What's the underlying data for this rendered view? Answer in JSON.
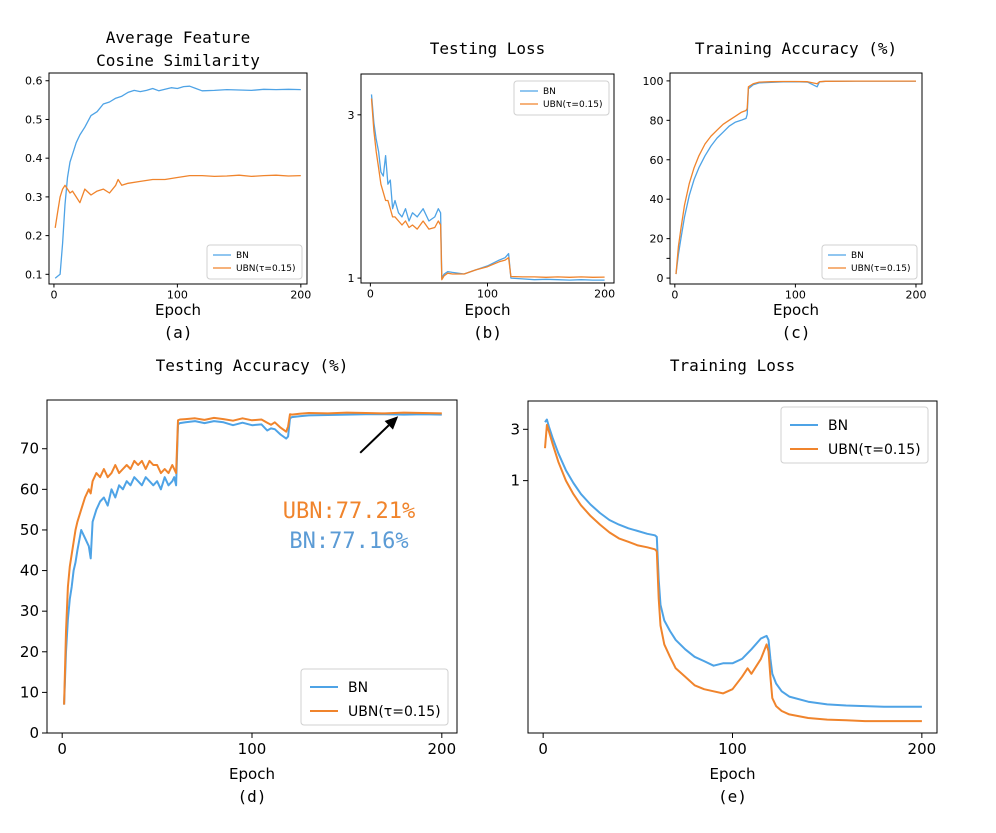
{
  "figure": {
    "colors": {
      "bn": "#4ea3e6",
      "ubn": "#f0842c"
    },
    "annotation": {
      "ubn_text": "UBN:77.21%",
      "bn_text": "BN:77.16%"
    }
  },
  "chart_data": [
    {
      "id": "a",
      "type": "line",
      "title_lines": [
        "Average Feature",
        "Cosine Similarity"
      ],
      "xlabel": "Epoch",
      "caption": "(a)",
      "xlim": [
        -4,
        205
      ],
      "ylim": [
        0.075,
        0.62
      ],
      "xticks": [
        0,
        100,
        200
      ],
      "yticks": [
        0.1,
        0.2,
        0.3,
        0.4,
        0.5,
        0.6
      ],
      "ytick_labels": [
        "0.1",
        "0.2",
        "0.3",
        "0.4",
        "0.5",
        "0.6"
      ],
      "legend": {
        "position": "lower-right",
        "entries": [
          "BN",
          "UBN(τ=0.15)"
        ]
      },
      "series": [
        {
          "name": "BN",
          "color": "#4ea3e6",
          "x": [
            1,
            3,
            5,
            7,
            9,
            11,
            13,
            15,
            18,
            21,
            25,
            30,
            35,
            40,
            45,
            50,
            55,
            60,
            65,
            70,
            75,
            80,
            85,
            90,
            95,
            100,
            105,
            110,
            115,
            120,
            130,
            140,
            150,
            160,
            170,
            180,
            190,
            200
          ],
          "y": [
            0.09,
            0.095,
            0.1,
            0.18,
            0.28,
            0.35,
            0.39,
            0.41,
            0.44,
            0.46,
            0.48,
            0.51,
            0.52,
            0.54,
            0.545,
            0.555,
            0.56,
            0.57,
            0.575,
            0.572,
            0.575,
            0.58,
            0.574,
            0.578,
            0.582,
            0.58,
            0.585,
            0.586,
            0.58,
            0.574,
            0.575,
            0.577,
            0.576,
            0.575,
            0.578,
            0.577,
            0.578,
            0.577
          ]
        },
        {
          "name": "UBN(τ=0.15)",
          "color": "#f0842c",
          "x": [
            1,
            3,
            5,
            7,
            9,
            11,
            13,
            15,
            18,
            21,
            25,
            30,
            35,
            40,
            45,
            50,
            52,
            55,
            60,
            70,
            80,
            90,
            100,
            110,
            120,
            130,
            140,
            150,
            160,
            170,
            180,
            190,
            200
          ],
          "y": [
            0.22,
            0.26,
            0.3,
            0.32,
            0.33,
            0.32,
            0.31,
            0.315,
            0.3,
            0.285,
            0.32,
            0.305,
            0.315,
            0.32,
            0.31,
            0.33,
            0.345,
            0.33,
            0.335,
            0.34,
            0.345,
            0.345,
            0.35,
            0.355,
            0.355,
            0.353,
            0.354,
            0.356,
            0.353,
            0.355,
            0.356,
            0.354,
            0.355
          ]
        }
      ]
    },
    {
      "id": "b",
      "type": "line",
      "title_lines": [
        "Testing Loss"
      ],
      "xlabel": "Epoch",
      "caption": "(b)",
      "xlim": [
        -8,
        208
      ],
      "ylim": [
        0.94,
        3.5
      ],
      "xticks": [
        0,
        100,
        200
      ],
      "yticks": [
        1,
        3
      ],
      "ytick_labels": [
        "1",
        "3"
      ],
      "legend": {
        "position": "upper-right",
        "entries": [
          "BN",
          "UBN(τ=0.15)"
        ]
      },
      "series": [
        {
          "name": "BN",
          "color": "#4ea3e6",
          "x": [
            1,
            3,
            5,
            7,
            9,
            11,
            13,
            15,
            17,
            19,
            21,
            24,
            27,
            30,
            33,
            36,
            40,
            45,
            50,
            55,
            58,
            60,
            61,
            63,
            66,
            70,
            80,
            90,
            100,
            110,
            115,
            118,
            120,
            130,
            140,
            150,
            160,
            170,
            180,
            190,
            200
          ],
          "y": [
            3.25,
            2.9,
            2.7,
            2.55,
            2.3,
            2.25,
            2.5,
            2.15,
            2.2,
            1.85,
            1.95,
            1.8,
            1.75,
            1.85,
            1.7,
            1.8,
            1.75,
            1.85,
            1.7,
            1.75,
            1.85,
            1.8,
            1.0,
            1.05,
            1.08,
            1.07,
            1.05,
            1.1,
            1.15,
            1.22,
            1.25,
            1.3,
            1.0,
            0.99,
            0.98,
            0.985,
            0.98,
            0.975,
            0.98,
            0.975,
            0.975
          ]
        },
        {
          "name": "UBN(τ=0.15)",
          "color": "#f0842c",
          "x": [
            1,
            3,
            5,
            7,
            9,
            11,
            13,
            15,
            17,
            19,
            21,
            24,
            27,
            30,
            33,
            36,
            40,
            45,
            50,
            55,
            58,
            60,
            61,
            63,
            66,
            70,
            80,
            90,
            100,
            110,
            115,
            118,
            120,
            130,
            140,
            150,
            160,
            170,
            180,
            190,
            200
          ],
          "y": [
            3.2,
            2.8,
            2.55,
            2.35,
            2.15,
            2.05,
            1.95,
            1.95,
            1.85,
            1.75,
            1.75,
            1.7,
            1.65,
            1.7,
            1.62,
            1.65,
            1.6,
            1.7,
            1.6,
            1.62,
            1.7,
            1.65,
            0.98,
            1.03,
            1.06,
            1.05,
            1.05,
            1.1,
            1.14,
            1.2,
            1.22,
            1.25,
            1.02,
            1.015,
            1.015,
            1.01,
            1.015,
            1.01,
            1.015,
            1.01,
            1.012
          ]
        }
      ]
    },
    {
      "id": "c",
      "type": "line",
      "title_lines": [
        "Training Accuracy (%)"
      ],
      "xlabel": "Epoch",
      "caption": "(c)",
      "xlim": [
        -4,
        205
      ],
      "ylim": [
        -3,
        104
      ],
      "xticks": [
        0,
        100,
        200
      ],
      "yticks": [
        0,
        10,
        20,
        40,
        60,
        80,
        100
      ],
      "ytick_labels": [
        "0",
        "",
        "20",
        "40",
        "60",
        "80",
        "100"
      ],
      "legend": {
        "position": "lower-right",
        "entries": [
          "BN",
          "UBN(τ=0.15)"
        ]
      },
      "series": [
        {
          "name": "BN",
          "color": "#4ea3e6",
          "x": [
            1,
            3,
            5,
            8,
            12,
            16,
            20,
            25,
            30,
            35,
            40,
            45,
            50,
            55,
            59,
            60,
            61,
            65,
            70,
            80,
            90,
            100,
            110,
            118,
            120,
            125,
            150,
            175,
            200
          ],
          "y": [
            2,
            12,
            20,
            31,
            42,
            50,
            56,
            62,
            67,
            71,
            74,
            77,
            79,
            80,
            81,
            83,
            96,
            98,
            99,
            99.3,
            99.5,
            99.6,
            99.4,
            97,
            99.5,
            99.8,
            99.9,
            99.9,
            99.9
          ]
        },
        {
          "name": "UBN(τ=0.15)",
          "color": "#f0842c",
          "x": [
            1,
            3,
            5,
            8,
            12,
            16,
            20,
            25,
            30,
            35,
            40,
            45,
            50,
            55,
            59,
            60,
            61,
            65,
            70,
            80,
            90,
            100,
            110,
            118,
            120,
            125,
            150,
            175,
            200
          ],
          "y": [
            2,
            16,
            25,
            37,
            48,
            56,
            62,
            68,
            72,
            75,
            78,
            80,
            82,
            84,
            85,
            86,
            97,
            98.5,
            99.4,
            99.6,
            99.7,
            99.7,
            99.6,
            98.5,
            99.6,
            99.8,
            99.9,
            99.9,
            99.9
          ]
        }
      ]
    },
    {
      "id": "d",
      "type": "line",
      "title_lines": [
        "Testing Accuracy (%)"
      ],
      "xlabel": "Epoch",
      "caption": "(d)",
      "xlim": [
        -8,
        208
      ],
      "ylim": [
        0,
        82
      ],
      "xticks": [
        0,
        100,
        200
      ],
      "yticks": [
        0,
        10,
        20,
        30,
        40,
        50,
        60,
        70
      ],
      "ytick_labels": [
        "0",
        "10",
        "20",
        "30",
        "40",
        "50",
        "60",
        "70"
      ],
      "legend": {
        "position": "lower-right",
        "entries": [
          "BN",
          "UBN(τ=0.15)"
        ]
      },
      "annotation": {
        "arrow_from": [
          157,
          69
        ],
        "arrow_to": [
          177,
          78
        ]
      },
      "series": [
        {
          "name": "BN",
          "color": "#4ea3e6",
          "x": [
            1,
            2,
            3,
            4,
            5,
            6,
            7,
            8,
            10,
            12,
            14,
            15,
            16,
            18,
            20,
            22,
            24,
            26,
            28,
            30,
            32,
            34,
            36,
            38,
            40,
            42,
            44,
            46,
            48,
            50,
            52,
            54,
            56,
            58,
            59,
            60,
            61,
            62,
            65,
            70,
            75,
            80,
            85,
            90,
            95,
            100,
            105,
            108,
            110,
            112,
            115,
            118,
            119,
            120,
            121,
            125,
            130,
            140,
            150,
            160,
            170,
            180,
            190,
            200
          ],
          "y": [
            7,
            20,
            28,
            33,
            36,
            40,
            42,
            45,
            50,
            48,
            46,
            43,
            52,
            55,
            57,
            58,
            56,
            60,
            58,
            61,
            60,
            62,
            61,
            63,
            62,
            61,
            63,
            62,
            61,
            62,
            60,
            63,
            61,
            62,
            63,
            61,
            76,
            76.3,
            76.5,
            76.8,
            76.3,
            76.8,
            76.5,
            75.8,
            76.4,
            75.8,
            76,
            74.5,
            75,
            74.8,
            73.5,
            72.5,
            73,
            77.5,
            77.8,
            78,
            78.2,
            78.3,
            78.4,
            78.5,
            78.5,
            78.4,
            78.5,
            78.4
          ]
        },
        {
          "name": "UBN(τ=0.15)",
          "color": "#f0842c",
          "x": [
            1,
            2,
            3,
            4,
            5,
            6,
            7,
            8,
            10,
            12,
            14,
            15,
            16,
            18,
            20,
            22,
            24,
            26,
            28,
            30,
            32,
            34,
            36,
            38,
            40,
            42,
            44,
            46,
            48,
            50,
            52,
            54,
            56,
            58,
            59,
            60,
            61,
            62,
            65,
            70,
            75,
            80,
            85,
            90,
            95,
            100,
            105,
            108,
            110,
            112,
            115,
            118,
            119,
            120,
            121,
            125,
            130,
            140,
            150,
            160,
            170,
            180,
            190,
            200
          ],
          "y": [
            7,
            25,
            36,
            41,
            44,
            47,
            50,
            52,
            55,
            58,
            60,
            59,
            62,
            64,
            63,
            65,
            63,
            64,
            66,
            64,
            65,
            66,
            65,
            67,
            66,
            67,
            65,
            67,
            66,
            66,
            64,
            65,
            64,
            66,
            65,
            64,
            77,
            77.2,
            77.3,
            77.5,
            77.1,
            77.6,
            77.3,
            76.9,
            77.5,
            77,
            77.2,
            76.4,
            75.9,
            76.5,
            75.2,
            74.2,
            75.5,
            78.5,
            78.4,
            78.6,
            78.8,
            78.7,
            78.9,
            78.8,
            78.7,
            78.9,
            78.8,
            78.7
          ]
        }
      ]
    },
    {
      "id": "e",
      "type": "line",
      "title_lines": [
        "Training Loss"
      ],
      "xlabel": "Epoch",
      "caption": "(e)",
      "xlim": [
        -8,
        208
      ],
      "ylim": [
        0.0045,
        5.5
      ],
      "yscale": "log",
      "xticks": [
        0,
        100,
        200
      ],
      "yticks": [
        1,
        3
      ],
      "ytick_labels": [
        "1",
        "3"
      ],
      "legend": {
        "position": "upper-right",
        "entries": [
          "BN",
          "UBN(τ=0.15)"
        ]
      },
      "series": [
        {
          "name": "BN",
          "color": "#4ea3e6",
          "x": [
            1,
            2,
            3,
            5,
            8,
            12,
            16,
            20,
            25,
            30,
            35,
            40,
            45,
            50,
            55,
            59,
            60,
            61,
            62,
            64,
            67,
            70,
            75,
            80,
            85,
            90,
            95,
            100,
            105,
            110,
            115,
            118,
            119,
            120,
            121,
            123,
            126,
            130,
            140,
            150,
            160,
            170,
            180,
            190,
            200
          ],
          "y": [
            3.5,
            3.7,
            3.2,
            2.5,
            1.8,
            1.25,
            0.95,
            0.75,
            0.6,
            0.5,
            0.43,
            0.39,
            0.36,
            0.34,
            0.32,
            0.31,
            0.3,
            0.12,
            0.07,
            0.05,
            0.04,
            0.033,
            0.027,
            0.023,
            0.021,
            0.019,
            0.02,
            0.02,
            0.022,
            0.027,
            0.034,
            0.036,
            0.033,
            0.022,
            0.016,
            0.013,
            0.011,
            0.0098,
            0.0088,
            0.0083,
            0.0081,
            0.008,
            0.0079,
            0.0079,
            0.0079
          ]
        },
        {
          "name": "UBN(τ=0.15)",
          "color": "#f0842c",
          "x": [
            1,
            2,
            3,
            5,
            8,
            12,
            16,
            20,
            25,
            30,
            35,
            40,
            45,
            50,
            55,
            59,
            60,
            61,
            62,
            64,
            67,
            70,
            75,
            80,
            85,
            90,
            95,
            100,
            105,
            108,
            110,
            115,
            118,
            119,
            120,
            121,
            123,
            126,
            130,
            140,
            150,
            160,
            170,
            180,
            190,
            200
          ],
          "y": [
            2.0,
            3.3,
            2.9,
            2.2,
            1.5,
            1.0,
            0.75,
            0.59,
            0.47,
            0.39,
            0.33,
            0.29,
            0.27,
            0.25,
            0.24,
            0.23,
            0.22,
            0.08,
            0.045,
            0.03,
            0.023,
            0.018,
            0.015,
            0.0125,
            0.0115,
            0.011,
            0.0105,
            0.0115,
            0.015,
            0.018,
            0.016,
            0.022,
            0.03,
            0.026,
            0.015,
            0.0095,
            0.008,
            0.0072,
            0.0067,
            0.0062,
            0.006,
            0.0059,
            0.0058,
            0.0058,
            0.0058,
            0.0058
          ]
        }
      ]
    }
  ]
}
